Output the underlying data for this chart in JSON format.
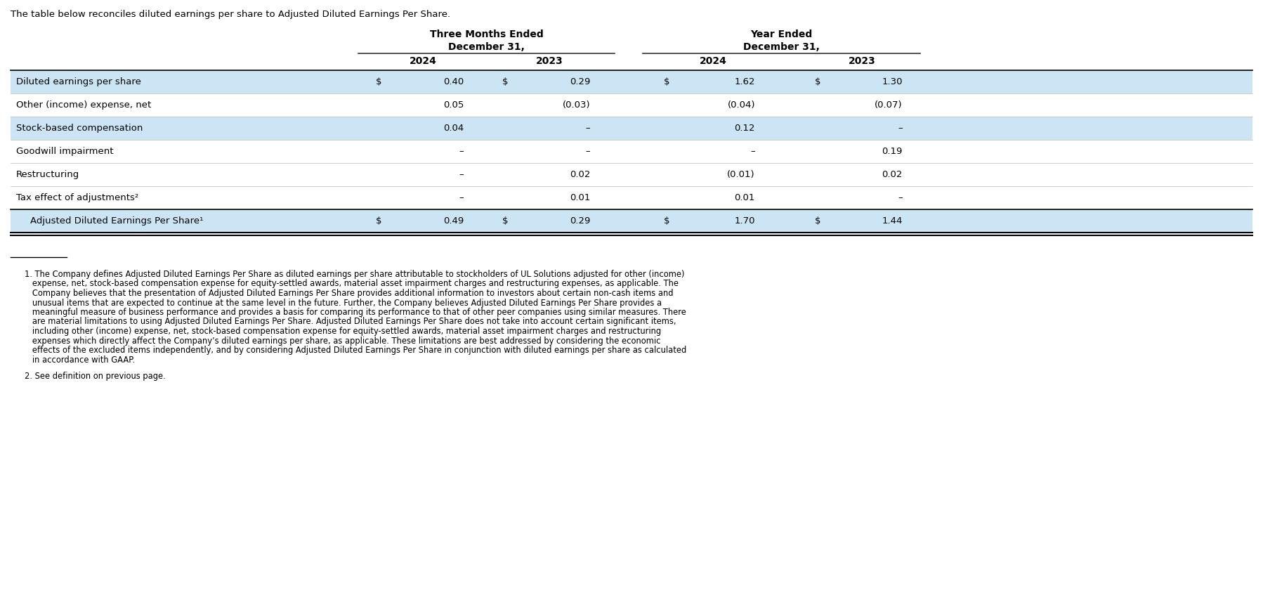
{
  "intro_text": "The table below reconciles diluted earnings per share to Adjusted Diluted Earnings Per Share.",
  "rows": [
    {
      "label": "Diluted earnings per share",
      "values": [
        "$",
        "0.40",
        "$",
        "0.29",
        "$",
        "1.62",
        "$",
        "1.30"
      ],
      "highlighted": true,
      "indent": false
    },
    {
      "label": "Other (income) expense, net",
      "values": [
        "",
        "0.05",
        "",
        "(0.03)",
        "",
        "(0.04)",
        "",
        "(0.07)"
      ],
      "highlighted": false,
      "indent": false
    },
    {
      "label": "Stock-based compensation",
      "values": [
        "",
        "0.04",
        "",
        "–",
        "",
        "0.12",
        "",
        "–"
      ],
      "highlighted": true,
      "indent": false
    },
    {
      "label": "Goodwill impairment",
      "values": [
        "",
        "–",
        "",
        "–",
        "",
        "–",
        "",
        "0.19"
      ],
      "highlighted": false,
      "indent": false
    },
    {
      "label": "Restructuring",
      "values": [
        "",
        "–",
        "",
        "0.02",
        "",
        "(0.01)",
        "",
        "0.02"
      ],
      "highlighted": false,
      "indent": false
    },
    {
      "label": "Tax effect of adjustments²",
      "values": [
        "",
        "–",
        "",
        "0.01",
        "",
        "0.01",
        "",
        "–"
      ],
      "highlighted": false,
      "indent": false
    },
    {
      "label": "Adjusted Diluted Earnings Per Share¹",
      "values": [
        "$",
        "0.49",
        "$",
        "0.29",
        "$",
        "1.70",
        "$",
        "1.44"
      ],
      "highlighted": true,
      "indent": true
    }
  ],
  "footnote1_lines": [
    "1. The Company defines Adjusted Diluted Earnings Per Share as diluted earnings per share attributable to stockholders of UL Solutions adjusted for other (income)",
    "   expense, net, stock-based compensation expense for equity-settled awards, material asset impairment charges and restructuring expenses, as applicable. The",
    "   Company believes that the presentation of Adjusted Diluted Earnings Per Share provides additional information to investors about certain non-cash items and",
    "   unusual items that are expected to continue at the same level in the future. Further, the Company believes Adjusted Diluted Earnings Per Share provides a",
    "   meaningful measure of business performance and provides a basis for comparing its performance to that of other peer companies using similar measures. There",
    "   are material limitations to using Adjusted Diluted Earnings Per Share. Adjusted Diluted Earnings Per Share does not take into account certain significant items,",
    "   including other (income) expense, net, stock-based compensation expense for equity-settled awards, material asset impairment charges and restructuring",
    "   expenses which directly affect the Company’s diluted earnings per share, as applicable. These limitations are best addressed by considering the economic",
    "   effects of the excluded items independently, and by considering Adjusted Diluted Earnings Per Share in conjunction with diluted earnings per share as calculated",
    "   in accordance with GAAP."
  ],
  "footnote2": "2. See definition on previous page.",
  "highlight_color": "#cce5f5",
  "bg_color": "#ffffff",
  "text_color": "#000000",
  "line_color": "#000000",
  "divider_color": "#888888",
  "fig_width": 17.98,
  "fig_height": 8.44,
  "dpi": 100
}
